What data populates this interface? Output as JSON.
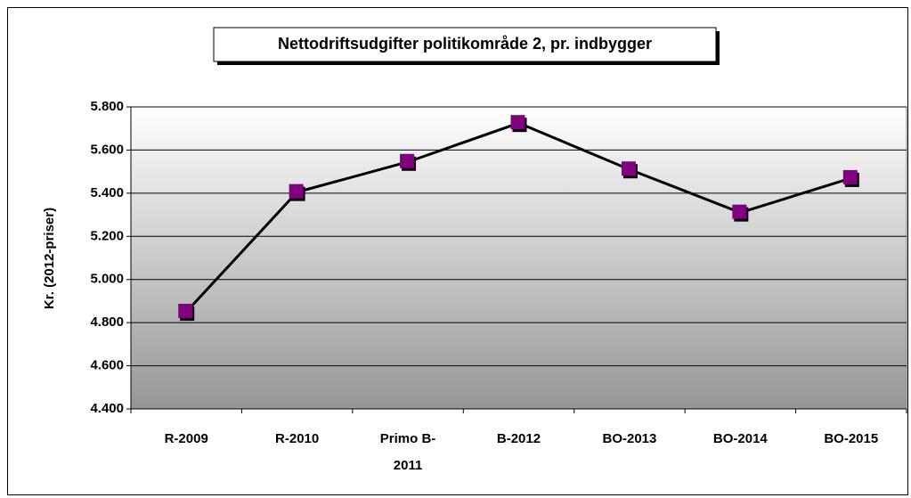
{
  "chart_data": {
    "type": "line",
    "title": "Nettodriftsudgifter politikområde 2, pr. indbygger",
    "y_label": "Kr. (2012-priser)",
    "categories": [
      "R-2009",
      "R-2010",
      "Primo B-2011",
      "B-2012",
      "BO-2013",
      "BO-2014",
      "BO-2015"
    ],
    "values": [
      4850,
      5405,
      5545,
      5725,
      5510,
      5310,
      5470
    ],
    "color": "#800080",
    "line_color": "#000000",
    "ylim": [
      4400,
      5800
    ],
    "yticks": [
      {
        "value": 4400,
        "label": "4.400"
      },
      {
        "value": 4600,
        "label": "4.600"
      },
      {
        "value": 4800,
        "label": "4.800"
      },
      {
        "value": 5000,
        "label": "5.000"
      },
      {
        "value": 5200,
        "label": "5.200"
      },
      {
        "value": 5400,
        "label": "5.400"
      },
      {
        "value": 5600,
        "label": "5.600"
      },
      {
        "value": 5800,
        "label": "5.800"
      }
    ],
    "grid": true
  }
}
